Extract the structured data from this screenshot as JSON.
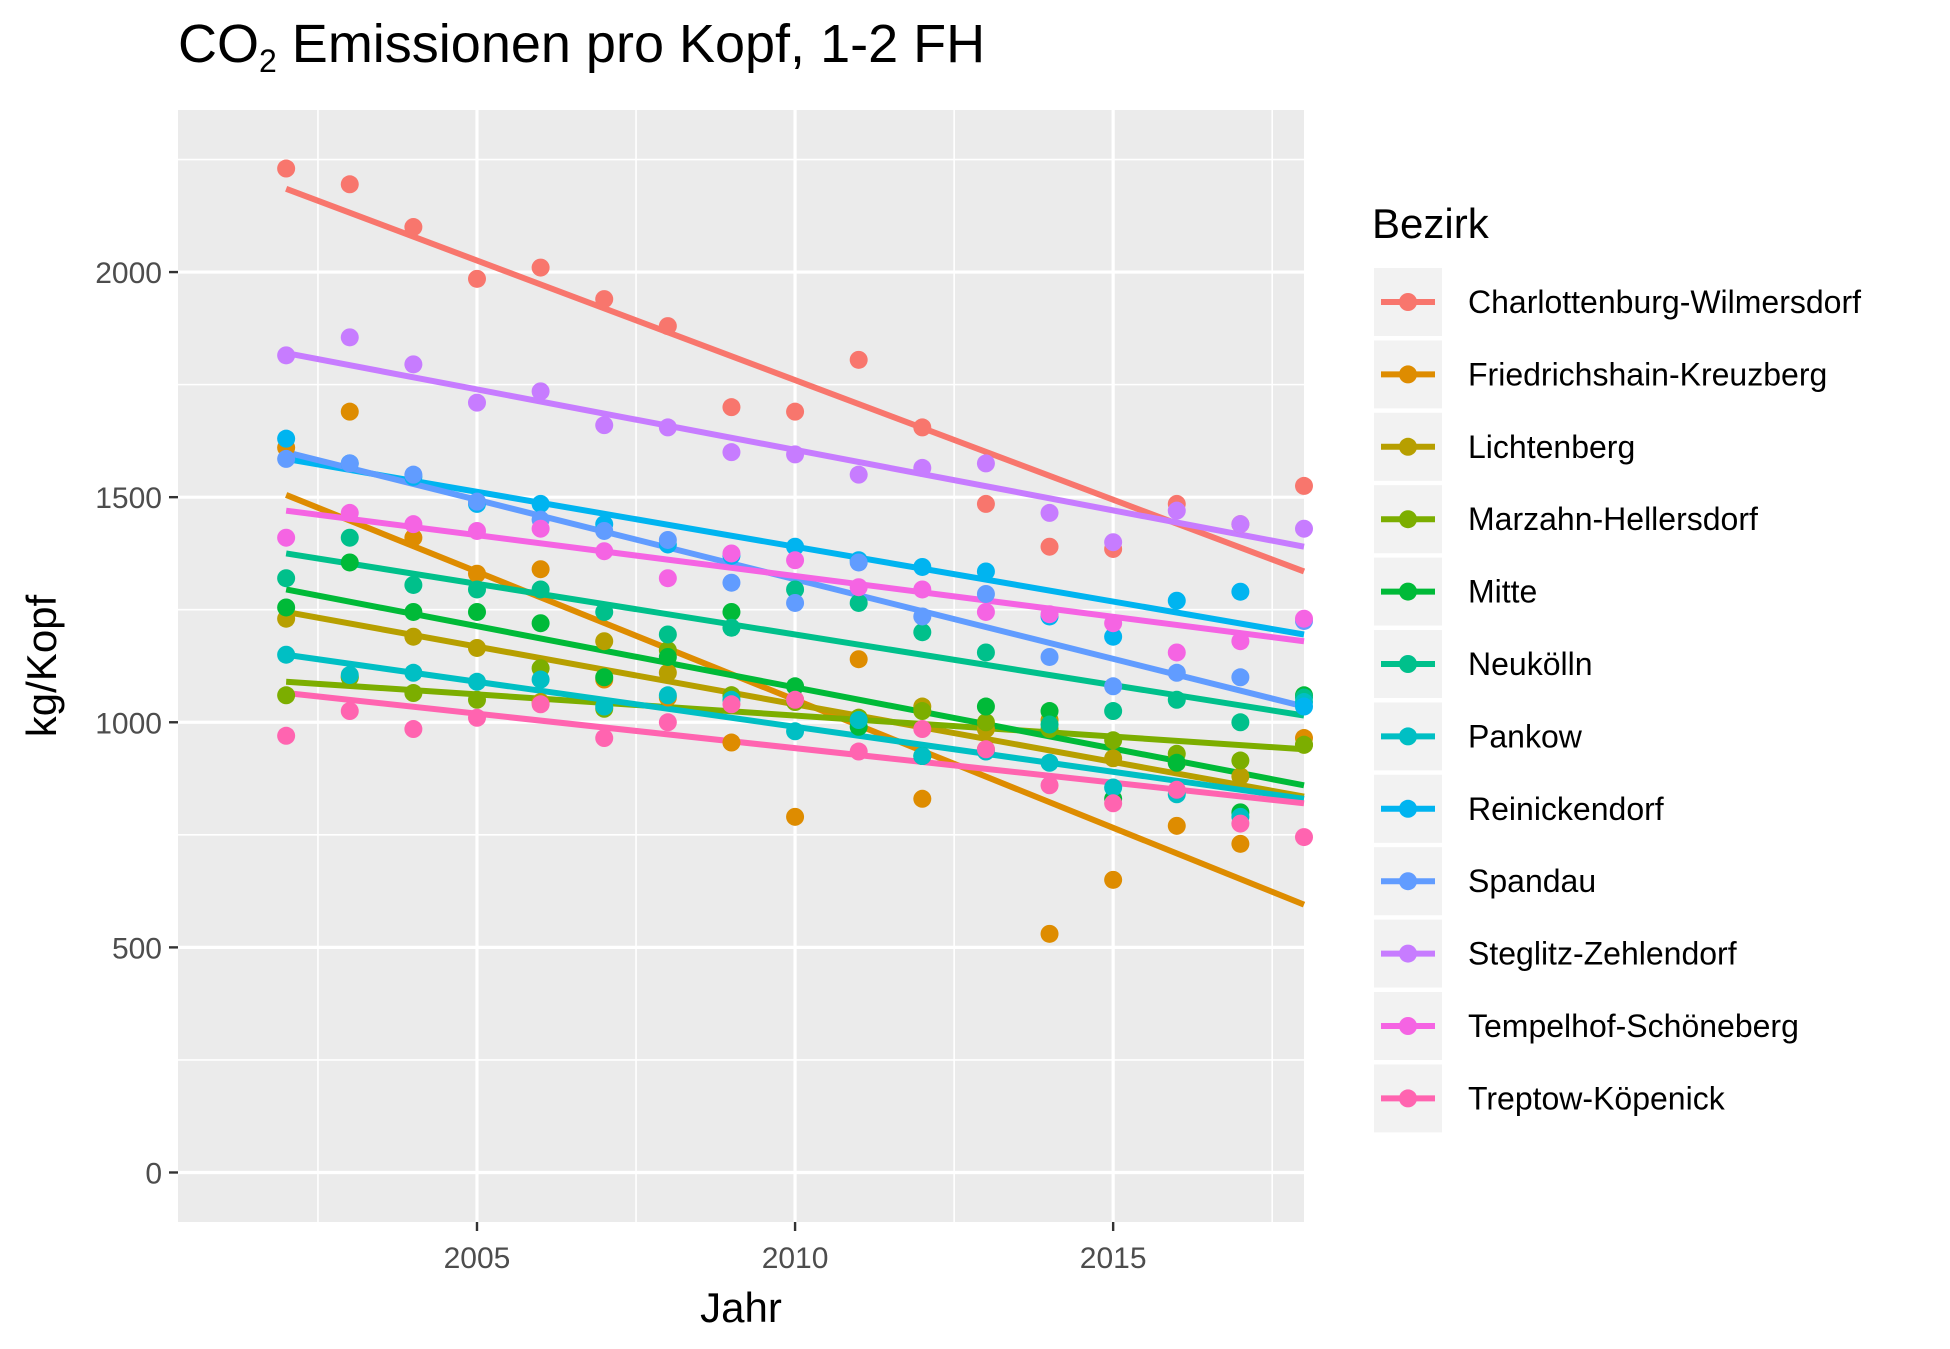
{
  "chart_data": {
    "type": "scatter",
    "title_main": "CO",
    "title_sub": "2",
    "title_rest": " Emissionen pro Kopf, 1-2 FH",
    "xlabel": "Jahr",
    "ylabel": "kg/Kopf",
    "xlim": [
      2000.3,
      2018.0
    ],
    "ylim": [
      -110,
      2360
    ],
    "x_ticks": [
      2005,
      2010,
      2015
    ],
    "y_ticks": [
      0,
      500,
      1000,
      1500,
      2000
    ],
    "grid": true,
    "legend": {
      "title": "Bezirk",
      "placement": "right"
    },
    "years": [
      2002,
      2003,
      2004,
      2005,
      2006,
      2007,
      2008,
      2009,
      2010,
      2011,
      2012,
      2013,
      2014,
      2015,
      2016,
      2017,
      2018
    ],
    "series": [
      {
        "name": "Charlottenburg-Wilmersdorf",
        "color": "#F8766D",
        "values": [
          2230,
          2195,
          2100,
          1985,
          2010,
          1940,
          1880,
          1700,
          1690,
          1805,
          1655,
          1485,
          1390,
          1385,
          1485,
          1440,
          1525
        ],
        "fit": [
          2185,
          1335
        ]
      },
      {
        "name": "Friedrichshain-Kreuzberg",
        "color": "#DE8C00",
        "values": [
          1610,
          1690,
          1410,
          1330,
          1340,
          1095,
          1055,
          955,
          790,
          1140,
          830,
          940,
          530,
          650,
          770,
          730,
          965
        ],
        "fit": [
          1505,
          595
        ]
      },
      {
        "name": "Lichtenberg",
        "color": "#B79F00",
        "values": [
          1230,
          1100,
          1190,
          1165,
          1045,
          1180,
          1110,
          1060,
          1050,
          1010,
          1035,
          985,
          1005,
          920,
          910,
          880,
          950
        ],
        "fit": [
          1245,
          835
        ]
      },
      {
        "name": "Marzahn-Hellersdorf",
        "color": "#7CAE00",
        "values": [
          1060,
          1100,
          1065,
          1050,
          1120,
          1030,
          1160,
          1060,
          1045,
          1010,
          1025,
          1000,
          985,
          960,
          930,
          915,
          950
        ],
        "fit": [
          1090,
          940
        ]
      },
      {
        "name": "Mitte",
        "color": "#00BA38",
        "values": [
          1255,
          1355,
          1245,
          1245,
          1220,
          1100,
          1145,
          1245,
          1080,
          990,
          925,
          1035,
          1025,
          830,
          910,
          800,
          1060
        ],
        "fit": [
          1295,
          860
        ]
      },
      {
        "name": "Neukölln",
        "color": "#00C08B",
        "values": [
          1320,
          1410,
          1305,
          1295,
          1295,
          1245,
          1195,
          1210,
          1295,
          1265,
          1200,
          1155,
          995,
          1025,
          1050,
          1000,
          1055
        ],
        "fit": [
          1375,
          1015
        ]
      },
      {
        "name": "Pankow",
        "color": "#00BFC4",
        "values": [
          1150,
          1105,
          1110,
          1090,
          1095,
          1035,
          1060,
          1050,
          980,
          1005,
          925,
          935,
          910,
          855,
          840,
          790,
          1045
        ],
        "fit": [
          1150,
          830
        ]
      },
      {
        "name": "Reinickendorf",
        "color": "#00B4F0",
        "values": [
          1630,
          1575,
          1545,
          1485,
          1485,
          1440,
          1395,
          1370,
          1390,
          1360,
          1345,
          1335,
          1235,
          1190,
          1270,
          1290,
          1035
        ],
        "fit": [
          1585,
          1195
        ]
      },
      {
        "name": "Spandau",
        "color": "#619CFF",
        "values": [
          1585,
          1575,
          1550,
          1490,
          1450,
          1425,
          1405,
          1310,
          1265,
          1355,
          1235,
          1285,
          1145,
          1080,
          1110,
          1100,
          1225
        ],
        "fit": [
          1600,
          1035
        ]
      },
      {
        "name": "Steglitz-Zehlendorf",
        "color": "#C77CFF",
        "values": [
          1815,
          1855,
          1795,
          1710,
          1735,
          1660,
          1655,
          1600,
          1595,
          1550,
          1565,
          1575,
          1465,
          1400,
          1470,
          1440,
          1430
        ],
        "fit": [
          1820,
          1390
        ]
      },
      {
        "name": "Tempelhof-Schöneberg",
        "color": "#F564E3",
        "values": [
          1410,
          1465,
          1440,
          1425,
          1430,
          1380,
          1320,
          1375,
          1360,
          1300,
          1295,
          1245,
          1240,
          1220,
          1155,
          1180,
          1230
        ],
        "fit": [
          1470,
          1180
        ]
      },
      {
        "name": "Treptow-Köpenick",
        "color": "#FF64B0",
        "values": [
          970,
          1025,
          985,
          1010,
          1040,
          965,
          1000,
          1040,
          1050,
          935,
          985,
          940,
          860,
          820,
          850,
          775,
          745
        ],
        "fit": [
          1065,
          820
        ]
      }
    ]
  }
}
